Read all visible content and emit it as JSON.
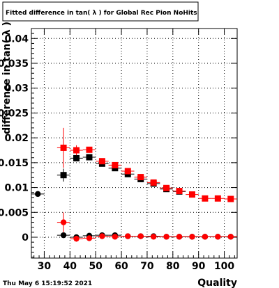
{
  "chart_data": {
    "type": "scatter",
    "title": "Fitted difference in tan( λ ) for Global Rec Pion NoHits",
    "xlabel": "Quality",
    "ylabel": "difference in tan( λ )",
    "xlim": [
      25,
      105
    ],
    "ylim": [
      -0.0042,
      0.042
    ],
    "x_ticks": [
      30,
      40,
      50,
      60,
      70,
      80,
      90,
      100
    ],
    "y_ticks": [
      0,
      0.005,
      0.01,
      0.015,
      0.02,
      0.025,
      0.03,
      0.035,
      0.04
    ],
    "y_tick_labels": [
      "0",
      "0.005",
      "0.01",
      "0.015",
      "0.02",
      "0.025",
      "0.03",
      "0.035",
      "0.04"
    ],
    "grid": true,
    "series": [
      {
        "color": "#000000",
        "marker": "square",
        "points": [
          {
            "x": 37.5,
            "y": 0.0125,
            "yerr": 0.0013
          },
          {
            "x": 42.5,
            "y": 0.0159,
            "yerr": 0.0005
          },
          {
            "x": 47.5,
            "y": 0.0161,
            "yerr": 0.0004
          },
          {
            "x": 52.5,
            "y": 0.0148,
            "yerr": 0.0003
          },
          {
            "x": 57.5,
            "y": 0.0139,
            "yerr": 0.0003
          },
          {
            "x": 62.5,
            "y": 0.0127,
            "yerr": 0.0003
          },
          {
            "x": 67.5,
            "y": 0.0117,
            "yerr": 0.0003
          },
          {
            "x": 72.5,
            "y": 0.0108,
            "yerr": 0.0003
          },
          {
            "x": 77.5,
            "y": 0.0097,
            "yerr": 0.0003
          },
          {
            "x": 82.5,
            "y": 0.0092,
            "yerr": 0.0003
          }
        ]
      },
      {
        "color": "#ff0000",
        "marker": "square",
        "points": [
          {
            "x": 37.5,
            "y": 0.018,
            "yerr": 0.004
          },
          {
            "x": 42.5,
            "y": 0.0175,
            "yerr": 0.001
          },
          {
            "x": 47.5,
            "y": 0.0176,
            "yerr": 0.0006
          },
          {
            "x": 52.5,
            "y": 0.0153,
            "yerr": 0.0004
          },
          {
            "x": 57.5,
            "y": 0.0145,
            "yerr": 0.0004
          },
          {
            "x": 62.5,
            "y": 0.0133,
            "yerr": 0.0003
          },
          {
            "x": 67.5,
            "y": 0.0121,
            "yerr": 0.0003
          },
          {
            "x": 72.5,
            "y": 0.011,
            "yerr": 0.0003
          },
          {
            "x": 77.5,
            "y": 0.0099,
            "yerr": 0.0003
          },
          {
            "x": 82.5,
            "y": 0.0093,
            "yerr": 0.0003
          },
          {
            "x": 87.5,
            "y": 0.0086,
            "yerr": 0.0003
          },
          {
            "x": 92.5,
            "y": 0.0078,
            "yerr": 0.0003
          },
          {
            "x": 97.5,
            "y": 0.0078,
            "yerr": 0.0003
          },
          {
            "x": 102.5,
            "y": 0.0077,
            "yerr": 0.0003
          }
        ]
      },
      {
        "color": "#000000",
        "marker": "circle",
        "points": [
          {
            "x": 27.5,
            "y": 0.0087,
            "yerr": 0.0003
          },
          {
            "x": 37.5,
            "y": 0.0004,
            "yerr": 0.0003
          },
          {
            "x": 42.5,
            "y": 0.0,
            "yerr": 0.0003
          },
          {
            "x": 47.5,
            "y": 0.0003,
            "yerr": 0.0003
          },
          {
            "x": 52.5,
            "y": 0.0004,
            "yerr": 0.0003
          },
          {
            "x": 57.5,
            "y": 0.0004,
            "yerr": 0.0003
          },
          {
            "x": 62.5,
            "y": 0.0002,
            "yerr": 0.0003
          },
          {
            "x": 67.5,
            "y": 0.0002,
            "yerr": 0.0003
          },
          {
            "x": 72.5,
            "y": 0.0002,
            "yerr": 0.0003
          },
          {
            "x": 77.5,
            "y": 0.0001,
            "yerr": 0.0003
          },
          {
            "x": 82.5,
            "y": 0.0001,
            "yerr": 0.0003
          },
          {
            "x": 87.5,
            "y": 0.0001,
            "yerr": 0.0003
          },
          {
            "x": 92.5,
            "y": 0.0001,
            "yerr": 0.0003
          },
          {
            "x": 97.5,
            "y": 0.0001,
            "yerr": 0.0003
          },
          {
            "x": 102.5,
            "y": 0.0001,
            "yerr": 0.0003
          }
        ]
      },
      {
        "color": "#ff0000",
        "marker": "circle",
        "points": [
          {
            "x": 37.5,
            "y": 0.003,
            "yerr": 0.002
          },
          {
            "x": 42.5,
            "y": -0.0003,
            "yerr": 0.0006
          },
          {
            "x": 47.5,
            "y": -0.0002,
            "yerr": 0.0004
          },
          {
            "x": 52.5,
            "y": 0.0002,
            "yerr": 0.0003
          },
          {
            "x": 57.5,
            "y": 0.0001,
            "yerr": 0.0003
          },
          {
            "x": 62.5,
            "y": 0.0002,
            "yerr": 0.0003
          },
          {
            "x": 67.5,
            "y": 0.0002,
            "yerr": 0.0003
          },
          {
            "x": 72.5,
            "y": 0.0001,
            "yerr": 0.0003
          },
          {
            "x": 77.5,
            "y": 0.0001,
            "yerr": 0.0003
          },
          {
            "x": 82.5,
            "y": 0.0001,
            "yerr": 0.0003
          },
          {
            "x": 87.5,
            "y": 0.0001,
            "yerr": 0.0003
          },
          {
            "x": 92.5,
            "y": 0.0001,
            "yerr": 0.0003
          },
          {
            "x": 97.5,
            "y": 0.0001,
            "yerr": 0.0003
          },
          {
            "x": 102.5,
            "y": 0.0001,
            "yerr": 0.0003
          }
        ]
      }
    ]
  },
  "footer": {
    "timestamp": "Thu May  6 15:19:52 2021"
  }
}
